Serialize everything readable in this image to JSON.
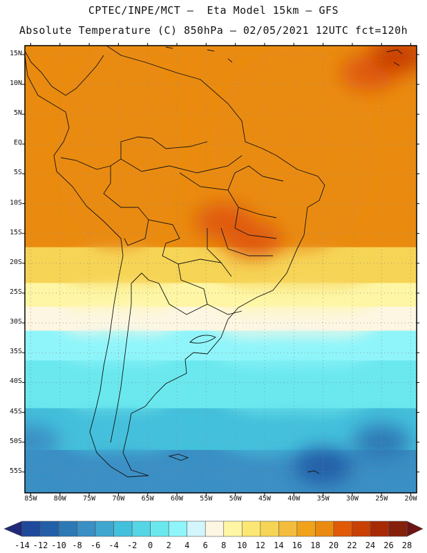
{
  "header": {
    "line1": "CPTEC/INPE/MCT –  Eta Model 15km – GFS",
    "line2": "Absolute Temperature (C) 850hPa – 02/05/2021 12UTC fct=120h"
  },
  "map": {
    "lat_labels": [
      "15N",
      "10N",
      "5N",
      "EQ",
      "5S",
      "10S",
      "15S",
      "20S",
      "25S",
      "30S",
      "35S",
      "40S",
      "45S",
      "50S",
      "55S"
    ],
    "lat_values": [
      15,
      10,
      5,
      0,
      -5,
      -10,
      -15,
      -20,
      -25,
      -30,
      -35,
      -40,
      -45,
      -50,
      -55
    ],
    "lon_labels": [
      "85W",
      "80W",
      "75W",
      "70W",
      "65W",
      "60W",
      "55W",
      "50W",
      "45W",
      "40W",
      "35W",
      "30W",
      "25W",
      "20W"
    ],
    "lon_values": [
      -85,
      -80,
      -75,
      -70,
      -65,
      -60,
      -55,
      -50,
      -45,
      -40,
      -35,
      -30,
      -25,
      -20
    ],
    "lon_range": [
      -86,
      -19
    ],
    "lat_range": [
      -58.5,
      16.5
    ],
    "grid": "dotted",
    "field_description_bands": [
      {
        "lat_from": 16.5,
        "lat_to": -18,
        "temp_c": 18
      },
      {
        "lat_from": -18,
        "lat_to": -24,
        "temp_c": 13
      },
      {
        "lat_from": -24,
        "lat_to": -28,
        "temp_c": 9
      },
      {
        "lat_from": -28,
        "lat_to": -32,
        "temp_c": 6
      },
      {
        "lat_from": -32,
        "lat_to": -37,
        "temp_c": 3
      },
      {
        "lat_from": -37,
        "lat_to": -45,
        "temp_c": 1
      },
      {
        "lat_from": -45,
        "lat_to": -52,
        "temp_c": -3
      },
      {
        "lat_from": -52,
        "lat_to": -58.5,
        "temp_c": -7
      }
    ],
    "warm_spots": [
      {
        "lon": -27,
        "lat": 12,
        "temp_c": 20
      },
      {
        "lon": -22,
        "lat": 15,
        "temp_c": 22
      },
      {
        "lon": -52,
        "lat": -13,
        "temp_c": 20
      },
      {
        "lon": -47,
        "lat": -16,
        "temp_c": 20
      }
    ],
    "cold_spots": [
      {
        "lon": -25,
        "lat": -50,
        "temp_c": -9
      },
      {
        "lon": -35,
        "lat": -54,
        "temp_c": -11
      },
      {
        "lon": -85,
        "lat": -50,
        "temp_c": -7
      }
    ]
  },
  "colorbar": {
    "labels": [
      "-14",
      "-12",
      "-10",
      "-8",
      "-6",
      "-4",
      "-2",
      "0",
      "2",
      "4",
      "6",
      "8",
      "10",
      "12",
      "14",
      "16",
      "18",
      "20",
      "22",
      "24",
      "26",
      "28"
    ],
    "colors": [
      "#202878",
      "#1f4a9c",
      "#235fa8",
      "#2d79b6",
      "#3a8fc4",
      "#3fa7cf",
      "#43c0dc",
      "#55d6e6",
      "#6ae8ee",
      "#8ff5fa",
      "#d2f6fb",
      "#fdf6e2",
      "#fef6a5",
      "#fce774",
      "#f6d455",
      "#f2bd3c",
      "#f0a21a",
      "#ea8b0f",
      "#e05a08",
      "#c94005",
      "#a82a05",
      "#85200a",
      "#6e1414"
    ]
  }
}
